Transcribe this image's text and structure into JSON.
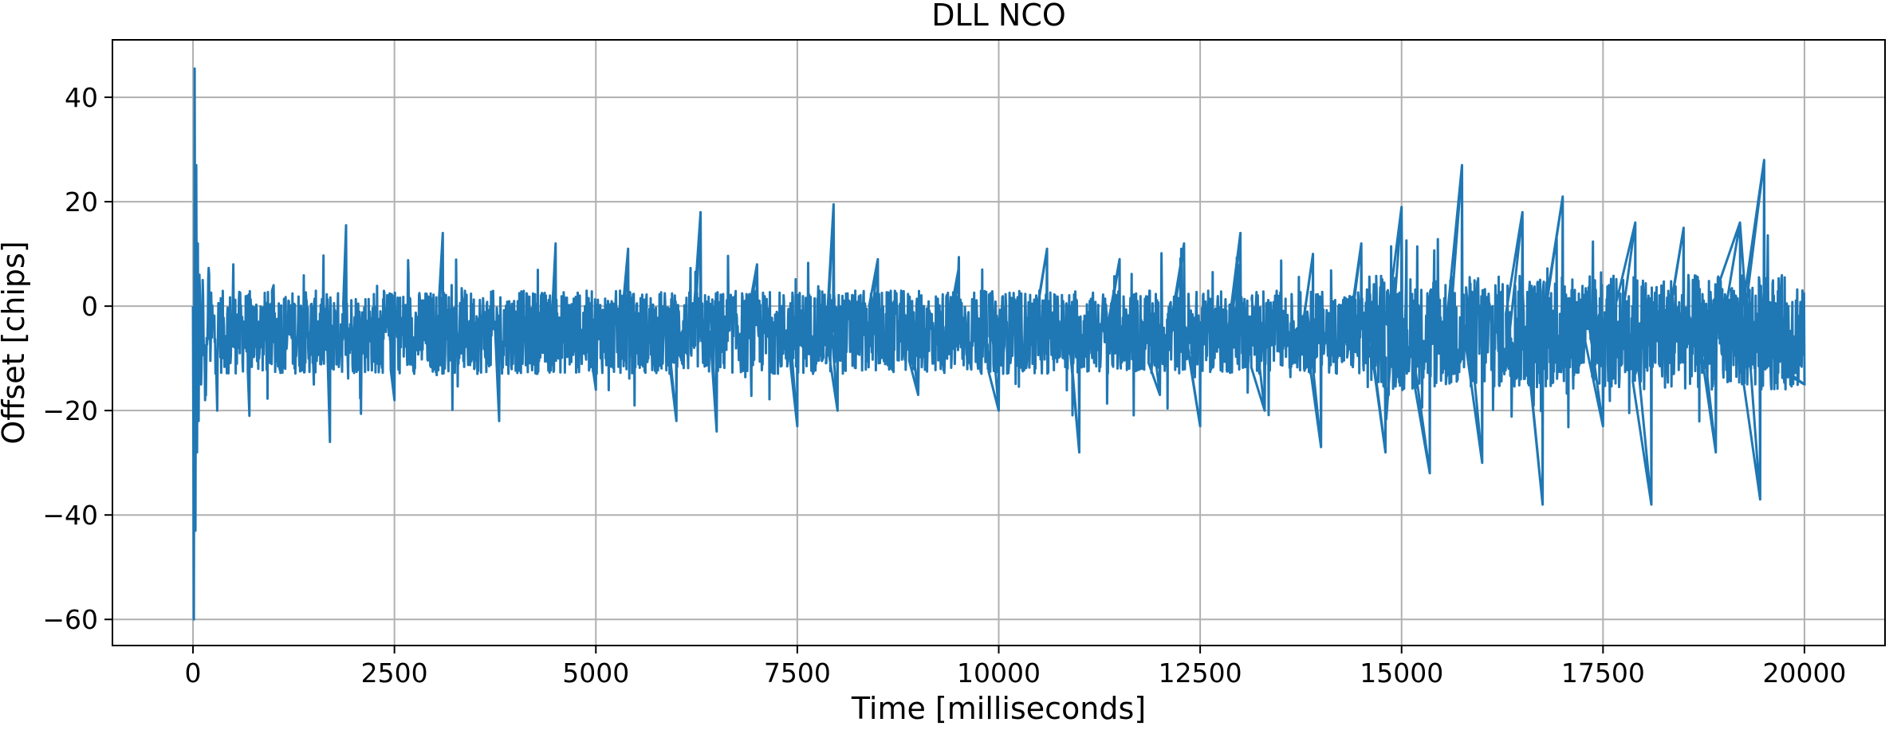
{
  "chart_data": {
    "type": "line",
    "title": "DLL NCO",
    "xlabel": "Time [milliseconds]",
    "ylabel": "Offset [chips]",
    "xlim": [
      -1000,
      21000
    ],
    "ylim": [
      -65,
      51
    ],
    "xticks": [
      0,
      2500,
      5000,
      7500,
      10000,
      12500,
      15000,
      17500,
      20000
    ],
    "xtick_labels": [
      "0",
      "2500",
      "5000",
      "7500",
      "10000",
      "12500",
      "15000",
      "17500",
      "20000"
    ],
    "yticks": [
      -60,
      -40,
      -20,
      0,
      20,
      40
    ],
    "ytick_labels": [
      "−60",
      "−40",
      "−20",
      "0",
      "20",
      "40"
    ],
    "grid": true,
    "line_color": "#1f77b4",
    "series": [
      {
        "x": [
          0,
          10,
          20,
          30,
          40,
          50,
          60,
          70,
          80,
          100,
          120,
          150,
          200,
          300,
          500,
          700,
          1000,
          1500,
          1700,
          1900,
          2500,
          3100,
          3800,
          4500,
          5000,
          5400,
          6000,
          6300,
          6500,
          7000,
          7500,
          7950,
          8000,
          8500,
          9000,
          9500,
          10000,
          10600,
          11000,
          11500,
          12000,
          12300,
          12500,
          13000,
          13300,
          13900,
          14000,
          14500,
          14800,
          15000,
          15350,
          15750,
          16000,
          16500,
          16750,
          17000,
          17500,
          17900,
          18100,
          18500,
          18900,
          19200,
          19450,
          19500,
          20000
        ],
        "y": [
          0,
          -60,
          45.5,
          -43,
          27,
          -28,
          12,
          -22,
          6,
          -15,
          5,
          -18,
          6,
          -20,
          8,
          -21,
          4,
          -15,
          -26,
          15.5,
          -18,
          14,
          -22,
          12,
          -16,
          11,
          -22,
          18,
          -24,
          8,
          -23,
          19.5,
          -20,
          9,
          -17,
          7,
          -20,
          11,
          -28,
          9,
          -17,
          12,
          -23,
          14,
          -20,
          10,
          -27,
          12,
          -28,
          19,
          -32,
          27,
          -30,
          18,
          -38,
          21,
          -23,
          16,
          -38,
          15,
          -28,
          16,
          -37,
          28,
          -15
        ],
        "note_density": "dense oscillation about -5 chips; band roughly ±8 chips with occasional spikes"
      }
    ]
  }
}
